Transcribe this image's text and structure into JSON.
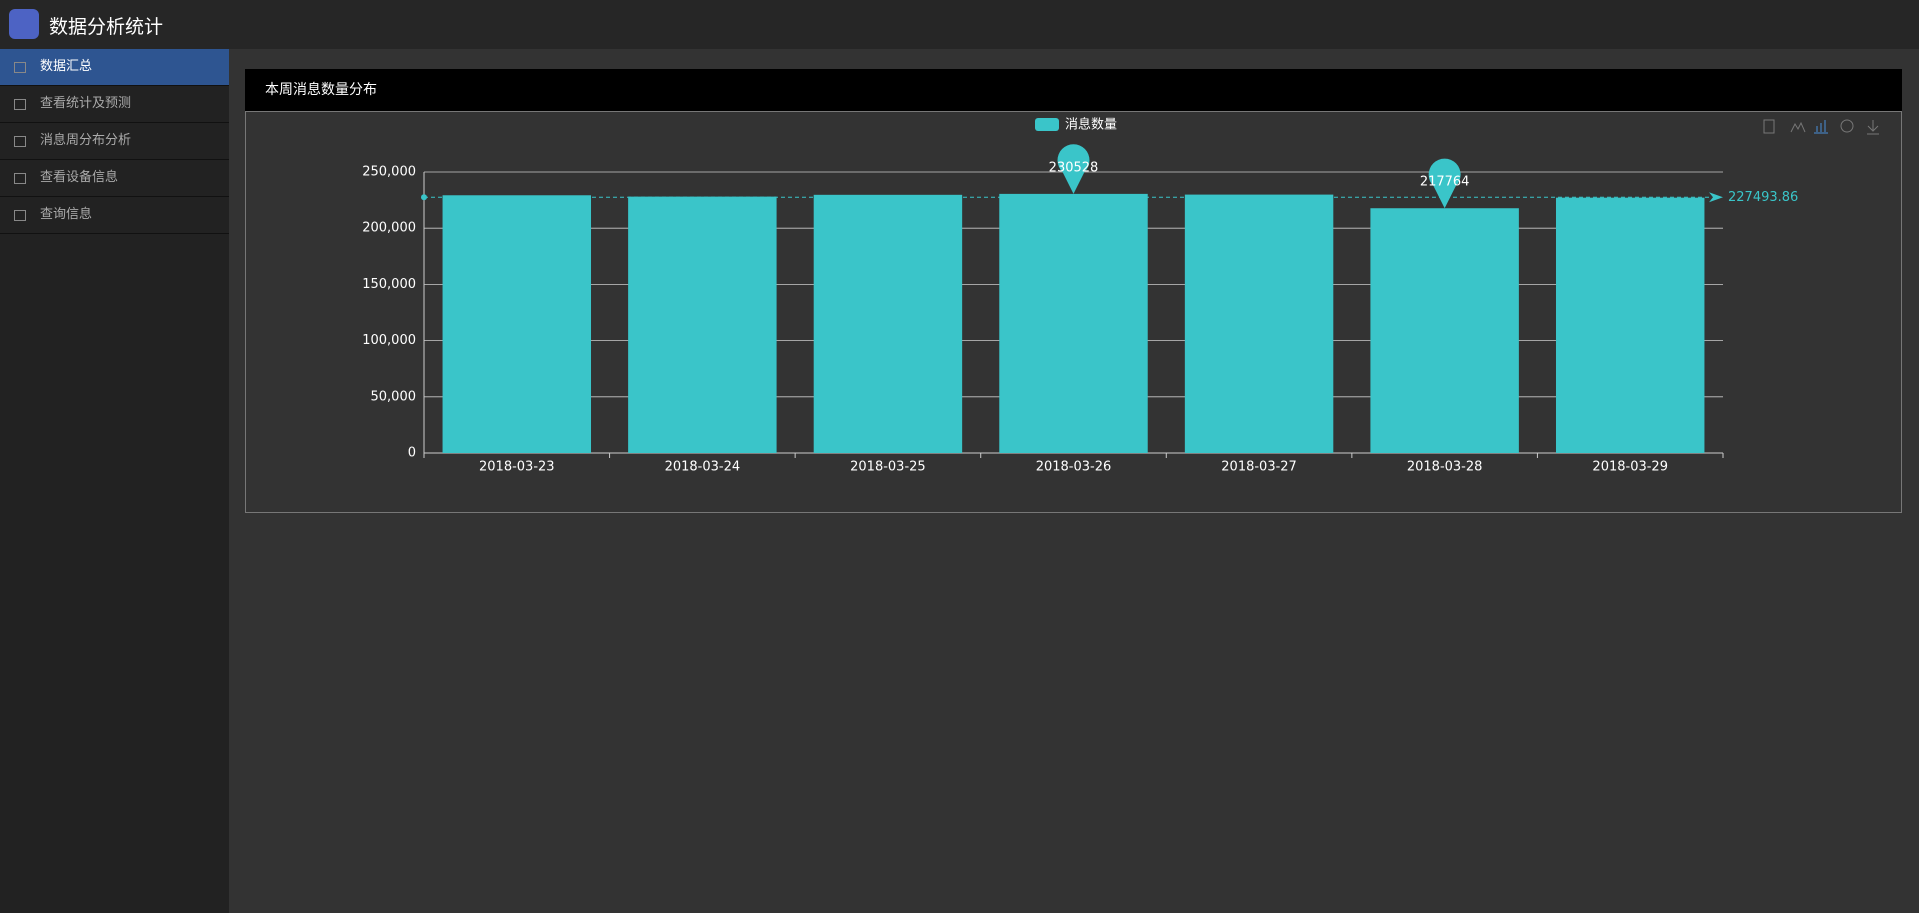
{
  "header": {
    "title": "数据分析统计"
  },
  "menu": [
    {
      "label": "数据汇总",
      "active": true
    },
    {
      "label": "查看统计及预测"
    },
    {
      "label": "消息周分布分析"
    },
    {
      "label": "查看设备信息"
    },
    {
      "label": "查询信息"
    }
  ],
  "panel": {
    "title": "本周消息数量分布"
  },
  "chart_data": {
    "type": "bar",
    "categories": [
      "2018-03-23",
      "2018-03-24",
      "2018-03-25",
      "2018-03-26",
      "2018-03-27",
      "2018-03-28",
      "2018-03-29"
    ],
    "series": [
      {
        "name": "消息数量",
        "color": "#3ac5c9",
        "values": [
          229300,
          228100,
          229700,
          230528,
          229900,
          217764,
          227165
        ]
      }
    ],
    "max_value": 230528,
    "min_value": 217764,
    "average": 227493.86,
    "ylim": [
      0,
      250000
    ],
    "yticks": [
      0,
      {
        "value": 50000,
        "label": "50,000"
      },
      {
        "value": 100000,
        "label": "100,000"
      },
      {
        "value": 150000,
        "label": "150,000"
      },
      {
        "value": 200000,
        "label": "200,000"
      },
      {
        "value": 250000,
        "label": "250,000"
      }
    ],
    "grid": true
  }
}
